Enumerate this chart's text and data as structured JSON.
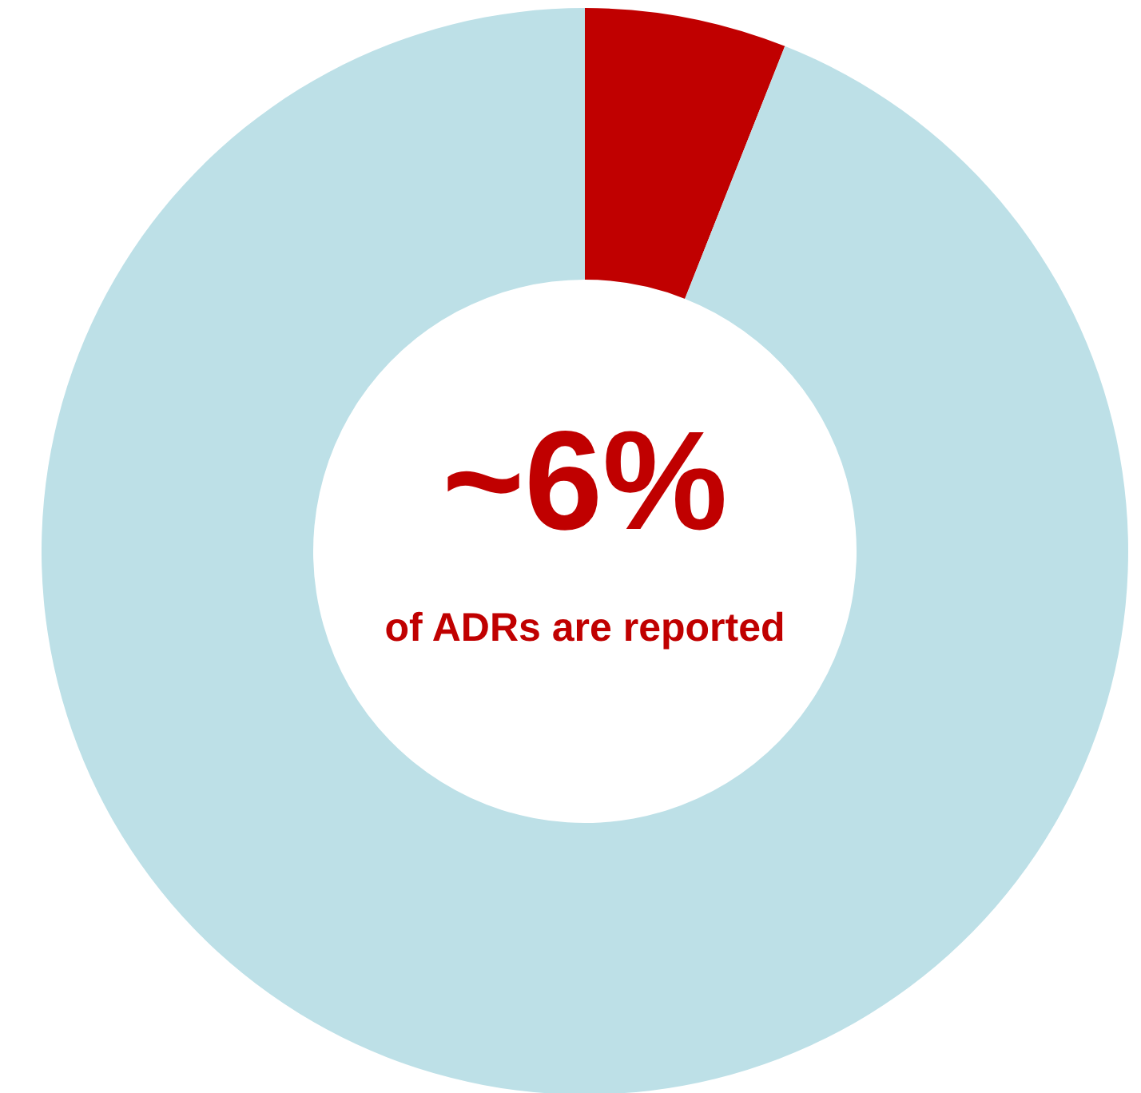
{
  "chart_data": {
    "type": "donut",
    "categories": [
      null,
      null
    ],
    "values": [
      6,
      94
    ],
    "colors": [
      "#c00000",
      "#bde0e7"
    ],
    "annotations": [
      "~6%",
      "of ADRs are reported"
    ]
  }
}
